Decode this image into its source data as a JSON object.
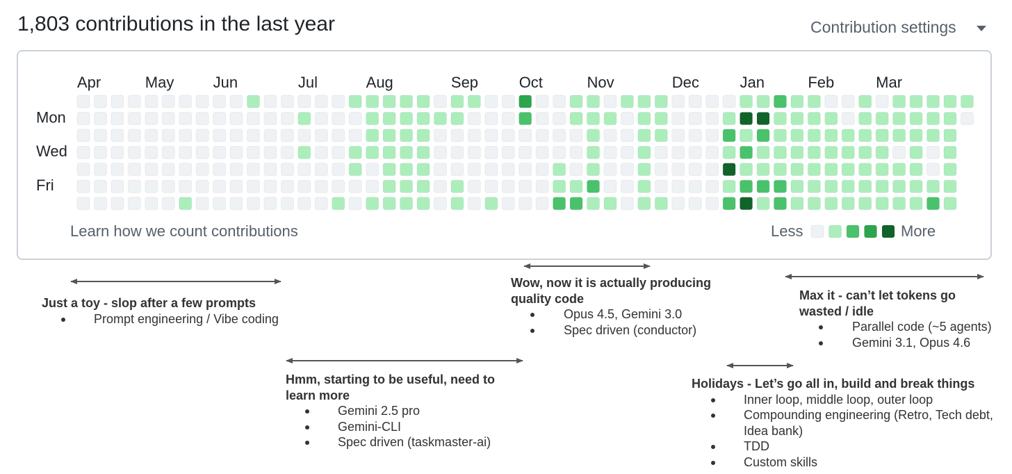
{
  "header": {
    "title": "1,803 contributions in the last year",
    "settings": "Contribution settings"
  },
  "calendar": {
    "months": [
      "Apr",
      "May",
      "Jun",
      "Jul",
      "Aug",
      "Sep",
      "Oct",
      "Nov",
      "Dec",
      "Jan",
      "Feb",
      "Mar"
    ],
    "days": [
      "Mon",
      "Wed",
      "Fri"
    ],
    "level_colors": [
      "#eff2f5",
      "#aceebb",
      "#4ac26b",
      "#2da44e",
      "#116329"
    ],
    "rows": [
      [
        0,
        0,
        0,
        0,
        0,
        0,
        0,
        0,
        0,
        0,
        1,
        0,
        0,
        0,
        0,
        0,
        1,
        1,
        1,
        1,
        1,
        0,
        1,
        1,
        0,
        0,
        3,
        0,
        0,
        1,
        1,
        0,
        1,
        1,
        1,
        0,
        0,
        0,
        0,
        1,
        1,
        2,
        1,
        1,
        0,
        0,
        1,
        0,
        1,
        1,
        1,
        1,
        1
      ],
      [
        0,
        0,
        0,
        0,
        0,
        0,
        0,
        0,
        0,
        0,
        0,
        0,
        0,
        1,
        0,
        0,
        0,
        1,
        1,
        1,
        1,
        1,
        1,
        0,
        0,
        0,
        2,
        0,
        0,
        1,
        1,
        1,
        0,
        1,
        1,
        0,
        0,
        0,
        1,
        4,
        4,
        1,
        1,
        1,
        1,
        0,
        1,
        1,
        1,
        1,
        1,
        1,
        0
      ],
      [
        0,
        0,
        0,
        0,
        0,
        0,
        0,
        0,
        0,
        0,
        0,
        0,
        0,
        0,
        0,
        0,
        0,
        1,
        1,
        1,
        1,
        0,
        0,
        0,
        0,
        0,
        0,
        0,
        0,
        0,
        1,
        0,
        0,
        1,
        1,
        0,
        0,
        0,
        2,
        1,
        2,
        1,
        1,
        1,
        1,
        1,
        1,
        1,
        1,
        1,
        1,
        1
      ],
      [
        0,
        0,
        0,
        0,
        0,
        0,
        0,
        0,
        0,
        0,
        0,
        0,
        0,
        1,
        0,
        0,
        1,
        1,
        1,
        1,
        1,
        0,
        0,
        0,
        0,
        0,
        0,
        0,
        0,
        0,
        1,
        0,
        0,
        1,
        0,
        0,
        0,
        0,
        1,
        2,
        1,
        1,
        1,
        1,
        1,
        1,
        1,
        1,
        0,
        1,
        0,
        1
      ],
      [
        0,
        0,
        0,
        0,
        0,
        0,
        0,
        0,
        0,
        0,
        0,
        0,
        0,
        0,
        0,
        0,
        1,
        0,
        1,
        1,
        1,
        0,
        0,
        0,
        0,
        0,
        0,
        0,
        1,
        0,
        1,
        0,
        0,
        1,
        0,
        0,
        0,
        0,
        4,
        1,
        1,
        1,
        1,
        1,
        1,
        1,
        1,
        1,
        1,
        1,
        0,
        1
      ],
      [
        0,
        0,
        0,
        0,
        0,
        0,
        0,
        0,
        0,
        0,
        0,
        0,
        0,
        0,
        0,
        0,
        0,
        0,
        1,
        1,
        1,
        0,
        1,
        0,
        0,
        0,
        0,
        0,
        1,
        1,
        2,
        0,
        0,
        1,
        0,
        0,
        0,
        0,
        1,
        2,
        2,
        2,
        1,
        1,
        1,
        1,
        1,
        1,
        1,
        1,
        1,
        1
      ],
      [
        0,
        0,
        0,
        0,
        0,
        0,
        1,
        0,
        0,
        0,
        0,
        0,
        0,
        0,
        0,
        1,
        0,
        1,
        1,
        1,
        1,
        0,
        1,
        0,
        1,
        0,
        0,
        0,
        2,
        2,
        1,
        1,
        0,
        1,
        1,
        0,
        0,
        0,
        2,
        4,
        1,
        2,
        1,
        1,
        1,
        1,
        1,
        1,
        1,
        1,
        2,
        1
      ]
    ],
    "footer": "Learn how we count contributions",
    "legend_less": "Less",
    "legend_more": "More"
  },
  "annotations": [
    {
      "title": "Just a toy - slop after a few prompts",
      "bullets": [
        "Prompt engineering / Vibe coding"
      ]
    },
    {
      "title": "Hmm, starting to be useful, need to learn more",
      "bullets": [
        "Gemini 2.5 pro",
        "Gemini-CLI",
        "Spec driven (taskmaster-ai)"
      ]
    },
    {
      "title": "Wow, now it is actually producing quality code",
      "bullets": [
        "Opus 4.5, Gemini 3.0",
        "Spec driven (conductor)"
      ]
    },
    {
      "title": "Max it - can’t let tokens go wasted / idle",
      "bullets": [
        "Parallel code (~5 agents)",
        "Gemini 3.1, Opus 4.6"
      ]
    },
    {
      "title": "Holidays - Let’s go all in, build and break things",
      "bullets": [
        "Inner loop, middle loop, outer loop",
        "Compounding engineering (Retro, Tech debt, Idea bank)",
        "TDD",
        "Custom skills"
      ]
    }
  ]
}
